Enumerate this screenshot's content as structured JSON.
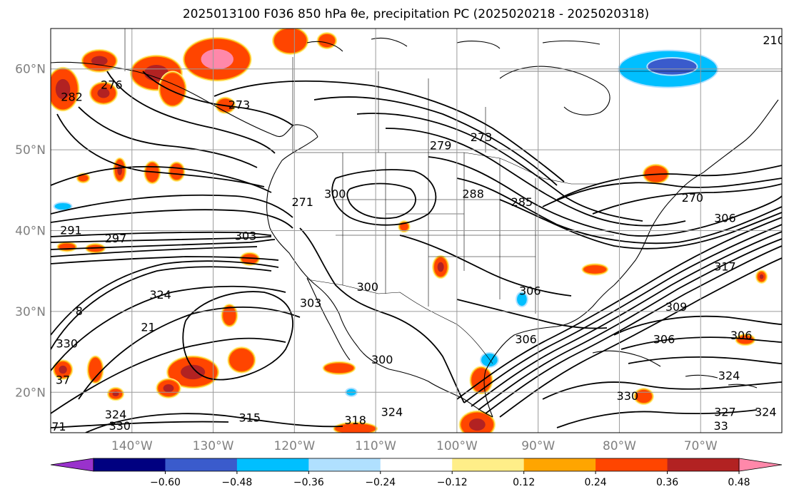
{
  "title": "2025013100 F036 850 hPa θe, precipitation PC (2025020218 - 2025020318)",
  "map": {
    "projection": "PlateCarree",
    "lon_range": [
      -150,
      -60
    ],
    "lat_range": [
      15,
      65
    ],
    "lat_ticks": [
      {
        "value": 60,
        "label": "60°N"
      },
      {
        "value": 50,
        "label": "50°N"
      },
      {
        "value": 40,
        "label": "40°N"
      },
      {
        "value": 30,
        "label": "30°N"
      },
      {
        "value": 20,
        "label": "20°N"
      }
    ],
    "lon_ticks": [
      {
        "value": -140,
        "label": "140°W"
      },
      {
        "value": -130,
        "label": "130°W"
      },
      {
        "value": -120,
        "label": "120°W"
      },
      {
        "value": -110,
        "label": "110°W"
      },
      {
        "value": -100,
        "label": "100°W"
      },
      {
        "value": -90,
        "label": "90°W"
      },
      {
        "value": -80,
        "label": "80°W"
      },
      {
        "value": -70,
        "label": "70°W"
      }
    ],
    "grid": true,
    "contour_labels": [
      {
        "text": "276",
        "lon": -142.5,
        "lat": 58.0
      },
      {
        "text": "282",
        "lon": -147.4,
        "lat": 56.5
      },
      {
        "text": "273",
        "lon": -126.8,
        "lat": 55.5
      },
      {
        "text": "279",
        "lon": -102.0,
        "lat": 50.5
      },
      {
        "text": "273",
        "lon": -97.0,
        "lat": 51.5
      },
      {
        "text": "288",
        "lon": -98.0,
        "lat": 44.5
      },
      {
        "text": "285",
        "lon": -92.0,
        "lat": 43.5
      },
      {
        "text": "270",
        "lon": -71.0,
        "lat": 44.0
      },
      {
        "text": "306",
        "lon": -67.0,
        "lat": 41.5
      },
      {
        "text": "210",
        "lon": -61.0,
        "lat": 63.5
      },
      {
        "text": "271",
        "lon": -119.0,
        "lat": 43.5
      },
      {
        "text": "300",
        "lon": -115.0,
        "lat": 44.5
      },
      {
        "text": "291",
        "lon": -147.5,
        "lat": 40.0
      },
      {
        "text": "297",
        "lon": -142.0,
        "lat": 39.0
      },
      {
        "text": "303",
        "lon": -126.0,
        "lat": 39.3
      },
      {
        "text": "324",
        "lon": -136.5,
        "lat": 32.0
      },
      {
        "text": "303",
        "lon": -118.0,
        "lat": 31.0
      },
      {
        "text": "300",
        "lon": -111.0,
        "lat": 33.0
      },
      {
        "text": "306",
        "lon": -91.0,
        "lat": 32.5
      },
      {
        "text": "306",
        "lon": -91.5,
        "lat": 26.5
      },
      {
        "text": "317",
        "lon": -67.0,
        "lat": 35.5
      },
      {
        "text": "309",
        "lon": -73.0,
        "lat": 30.5
      },
      {
        "text": "306",
        "lon": -74.5,
        "lat": 26.5
      },
      {
        "text": "306",
        "lon": -65.0,
        "lat": 27.0
      },
      {
        "text": "324",
        "lon": -66.5,
        "lat": 22.0
      },
      {
        "text": "324",
        "lon": -62.0,
        "lat": 17.5
      },
      {
        "text": "327",
        "lon": -67.0,
        "lat": 17.5
      },
      {
        "text": "330",
        "lon": -79.0,
        "lat": 19.5
      },
      {
        "text": "33",
        "lon": -67.5,
        "lat": 15.8
      },
      {
        "text": "300",
        "lon": -109.2,
        "lat": 24.0
      },
      {
        "text": "318",
        "lon": -112.5,
        "lat": 16.5
      },
      {
        "text": "324",
        "lon": -108.0,
        "lat": 17.5
      },
      {
        "text": "315",
        "lon": -125.5,
        "lat": 16.8
      },
      {
        "text": "324",
        "lon": -142.0,
        "lat": 17.2
      },
      {
        "text": "330",
        "lon": -141.5,
        "lat": 15.8
      },
      {
        "text": "330",
        "lon": -148.0,
        "lat": 26.0
      },
      {
        "text": "8",
        "lon": -146.5,
        "lat": 30.0
      },
      {
        "text": "37",
        "lon": -148.5,
        "lat": 21.5
      },
      {
        "text": "71",
        "lon": -149.0,
        "lat": 15.7
      },
      {
        "text": "21",
        "lon": -138.0,
        "lat": 28.0
      }
    ],
    "precip_features": [
      {
        "lon": -144.0,
        "lat": 61.0,
        "rx": 2.0,
        "ry": 1.2,
        "level": 0.48
      },
      {
        "lon": -137.0,
        "lat": 59.5,
        "rx": 3.0,
        "ry": 2.0,
        "level": 0.48
      },
      {
        "lon": -129.5,
        "lat": 61.2,
        "rx": 4.0,
        "ry": 2.5,
        "level": 0.6
      },
      {
        "lon": -120.5,
        "lat": 63.5,
        "rx": 2.0,
        "ry": 1.5,
        "level": 0.36
      },
      {
        "lon": -116.0,
        "lat": 63.5,
        "rx": 1.0,
        "ry": 0.8,
        "level": 0.36
      },
      {
        "lon": -148.5,
        "lat": 57.5,
        "rx": 1.8,
        "ry": 2.5,
        "level": 0.48
      },
      {
        "lon": -143.5,
        "lat": 57.0,
        "rx": 1.5,
        "ry": 1.2,
        "level": 0.48
      },
      {
        "lon": -135.0,
        "lat": 57.5,
        "rx": 1.5,
        "ry": 2.0,
        "level": 0.36
      },
      {
        "lon": -128.5,
        "lat": 55.5,
        "rx": 1.0,
        "ry": 0.8,
        "level": 0.36
      },
      {
        "lon": -141.5,
        "lat": 47.5,
        "rx": 0.6,
        "ry": 1.3,
        "level": 0.48
      },
      {
        "lon": -137.5,
        "lat": 47.2,
        "rx": 0.8,
        "ry": 1.2,
        "level": 0.36
      },
      {
        "lon": -134.5,
        "lat": 47.3,
        "rx": 0.8,
        "ry": 1.0,
        "level": 0.36
      },
      {
        "lon": -146.0,
        "lat": 46.5,
        "rx": 0.6,
        "ry": 0.4,
        "level": 0.36
      },
      {
        "lon": -148.0,
        "lat": 38.0,
        "rx": 1.0,
        "ry": 0.4,
        "level": 0.36
      },
      {
        "lon": -144.5,
        "lat": 37.8,
        "rx": 1.0,
        "ry": 0.4,
        "level": 0.36
      },
      {
        "lon": -125.5,
        "lat": 36.5,
        "rx": 1.0,
        "ry": 0.6,
        "level": 0.36
      },
      {
        "lon": -128.0,
        "lat": 29.5,
        "rx": 0.8,
        "ry": 1.2,
        "level": 0.36
      },
      {
        "lon": -132.5,
        "lat": 22.5,
        "rx": 3.0,
        "ry": 1.8,
        "level": 0.48
      },
      {
        "lon": -126.5,
        "lat": 24.0,
        "rx": 1.5,
        "ry": 1.4,
        "level": 0.36
      },
      {
        "lon": -144.5,
        "lat": 22.8,
        "rx": 0.8,
        "ry": 1.5,
        "level": 0.36
      },
      {
        "lon": -148.5,
        "lat": 22.8,
        "rx": 1.0,
        "ry": 1.0,
        "level": 0.48
      },
      {
        "lon": -142.0,
        "lat": 19.8,
        "rx": 0.8,
        "ry": 0.6,
        "level": 0.48
      },
      {
        "lon": -135.5,
        "lat": 20.5,
        "rx": 1.3,
        "ry": 1.0,
        "level": 0.48
      },
      {
        "lon": -114.5,
        "lat": 23.0,
        "rx": 1.8,
        "ry": 0.6,
        "level": 0.36
      },
      {
        "lon": -102.0,
        "lat": 35.5,
        "rx": 0.8,
        "ry": 1.2,
        "level": 0.48
      },
      {
        "lon": -106.5,
        "lat": 40.5,
        "rx": 0.5,
        "ry": 0.5,
        "level": 0.36
      },
      {
        "lon": -97.5,
        "lat": 16.0,
        "rx": 2.0,
        "ry": 1.5,
        "level": 0.48
      },
      {
        "lon": -97.0,
        "lat": 21.5,
        "rx": 1.2,
        "ry": 1.5,
        "level": 0.36
      },
      {
        "lon": -83.0,
        "lat": 35.2,
        "rx": 1.4,
        "ry": 0.5,
        "level": 0.36
      },
      {
        "lon": -75.5,
        "lat": 47.0,
        "rx": 1.4,
        "ry": 1.0,
        "level": 0.36
      },
      {
        "lon": -64.5,
        "lat": 26.5,
        "rx": 1.0,
        "ry": 0.5,
        "level": 0.36
      },
      {
        "lon": -62.5,
        "lat": 34.3,
        "rx": 0.5,
        "ry": 0.6,
        "level": 0.48
      },
      {
        "lon": -77.0,
        "lat": 19.5,
        "rx": 1.0,
        "ry": 0.8,
        "level": 0.36
      },
      {
        "lon": -112.5,
        "lat": 15.5,
        "rx": 2.5,
        "ry": 0.6,
        "level": 0.36
      },
      {
        "lon": -74.0,
        "lat": 60.0,
        "rx": 6.0,
        "ry": 2.2,
        "level": -0.36
      },
      {
        "lon": -73.5,
        "lat": 60.3,
        "rx": 3.0,
        "ry": 1.0,
        "level": -0.48
      },
      {
        "lon": -148.5,
        "lat": 43.0,
        "rx": 1.0,
        "ry": 0.4,
        "level": -0.36
      },
      {
        "lon": -96.0,
        "lat": 24.0,
        "rx": 1.0,
        "ry": 0.8,
        "level": -0.36
      },
      {
        "lon": -74.0,
        "lat": 14.3,
        "rx": 0.6,
        "ry": 0.4,
        "level": -0.36
      },
      {
        "lon": -92.0,
        "lat": 31.5,
        "rx": 0.6,
        "ry": 0.8,
        "level": -0.36
      },
      {
        "lon": -113.0,
        "lat": 20.0,
        "rx": 0.6,
        "ry": 0.4,
        "level": -0.36
      }
    ]
  },
  "colorbar": {
    "ticks": [
      "−0.60",
      "−0.48",
      "−0.36",
      "−0.24",
      "−0.12",
      "0.12",
      "0.24",
      "0.36",
      "0.48",
      "0.60"
    ],
    "levels": [
      -0.72,
      -0.6,
      -0.48,
      -0.36,
      -0.24,
      -0.12,
      0.12,
      0.24,
      0.36,
      0.48,
      0.6,
      0.72
    ],
    "colors": [
      "#9932cc",
      "#000080",
      "#3a5bcc",
      "#00bfff",
      "#b0e0ff",
      "#ffffff",
      "#ffee88",
      "#ffa500",
      "#ff4500",
      "#b22222",
      "#ff88aa"
    ],
    "extend": "both"
  }
}
